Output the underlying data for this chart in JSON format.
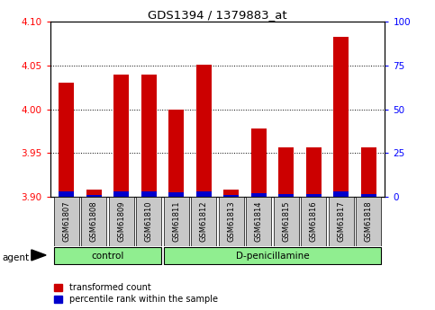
{
  "title": "GDS1394 / 1379883_at",
  "samples": [
    "GSM61807",
    "GSM61808",
    "GSM61809",
    "GSM61810",
    "GSM61811",
    "GSM61812",
    "GSM61813",
    "GSM61814",
    "GSM61815",
    "GSM61816",
    "GSM61817",
    "GSM61818"
  ],
  "red_values": [
    4.03,
    3.908,
    4.04,
    4.04,
    4.0,
    4.051,
    3.908,
    3.978,
    3.956,
    3.956,
    4.083,
    3.956
  ],
  "blue_heights": [
    0.006,
    0.002,
    0.006,
    0.006,
    0.005,
    0.006,
    0.002,
    0.004,
    0.003,
    0.003,
    0.006,
    0.003
  ],
  "ylim_left": [
    3.9,
    4.1
  ],
  "yticks_left": [
    3.9,
    3.95,
    4.0,
    4.05,
    4.1
  ],
  "yticks_right": [
    0,
    25,
    50,
    75,
    100
  ],
  "bar_width": 0.55,
  "red_color": "#CC0000",
  "blue_color": "#0000CC",
  "label_bg": "#c8c8c8",
  "group_color": "#90EE90",
  "legend_red": "transformed count",
  "legend_blue": "percentile rank within the sample"
}
